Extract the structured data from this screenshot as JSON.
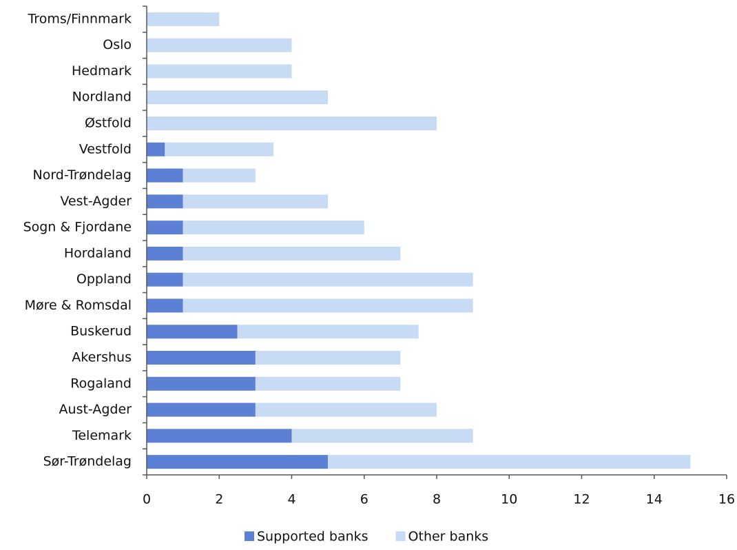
{
  "chart_data": {
    "type": "bar",
    "orientation": "horizontal",
    "stacked": true,
    "categories": [
      "Troms/Finnmark",
      "Oslo",
      "Hedmark",
      "Nordland",
      "Østfold",
      "Vestfold",
      "Nord-Trøndelag",
      "Vest-Agder",
      "Sogn & Fjordane",
      "Hordaland",
      "Oppland",
      "Møre & Romsdal",
      "Buskerud",
      "Akershus",
      "Rogaland",
      "Aust-Agder",
      "Telemark",
      "Sør-Trøndelag"
    ],
    "series": [
      {
        "name": "Supported banks",
        "color": "#5b80d4",
        "values": [
          0,
          0,
          0,
          0,
          0,
          0.5,
          1,
          1,
          1,
          1,
          1,
          1,
          2.5,
          3,
          3,
          3,
          4,
          5
        ]
      },
      {
        "name": "Other banks",
        "color": "#c8dbf5",
        "values": [
          2,
          4,
          4,
          5,
          8,
          3,
          2,
          4,
          5,
          6,
          8,
          8,
          5,
          4,
          4,
          5,
          5,
          10
        ]
      }
    ],
    "xlim": [
      0,
      16
    ],
    "xticks": [
      0,
      2,
      4,
      6,
      8,
      10,
      12,
      14,
      16
    ],
    "grid": false,
    "legend": "bottom"
  }
}
